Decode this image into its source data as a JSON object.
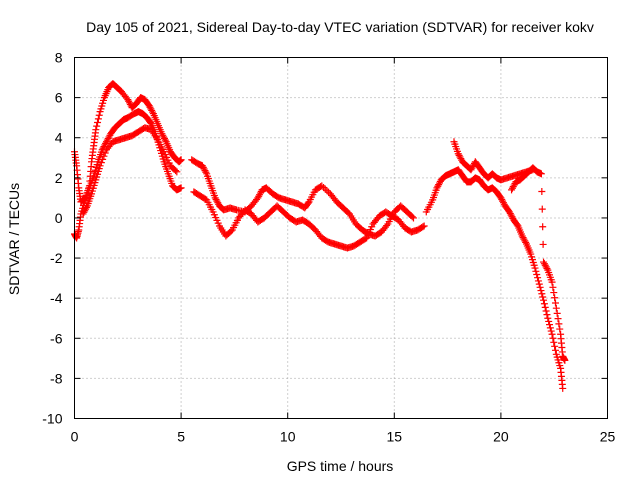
{
  "chart_data": {
    "type": "scatter",
    "title": "Day 105 of 2021, Sidereal Day-to-day VTEC variation (SDTVAR) for receiver kokv",
    "xlabel": "GPS time / hours",
    "ylabel": "SDTVAR / TECUs",
    "xlim": [
      0,
      25
    ],
    "ylim": [
      -10,
      8
    ],
    "x_ticks": [
      0,
      5,
      10,
      15,
      20,
      25
    ],
    "y_ticks": [
      -10,
      -8,
      -6,
      -4,
      -2,
      0,
      2,
      4,
      6,
      8
    ],
    "x_tick_labels": [
      "0",
      "5",
      "10",
      "15",
      "20",
      "25"
    ],
    "y_tick_labels": [
      "-10",
      "-8",
      "-6",
      "-4",
      "-2",
      "0",
      "2",
      "4",
      "6",
      "8"
    ],
    "grid": true,
    "marker": "+",
    "color": "#ff0000",
    "series": [
      {
        "name": "track-1",
        "points": [
          [
            0.0,
            3.3
          ],
          [
            0.1,
            2.6
          ],
          [
            0.2,
            1.5
          ],
          [
            0.3,
            0.8
          ],
          [
            0.5,
            1.0
          ],
          [
            0.7,
            1.6
          ],
          [
            0.8,
            2.8
          ],
          [
            0.9,
            3.6
          ],
          [
            1.0,
            4.4
          ],
          [
            1.2,
            5.3
          ],
          [
            1.4,
            6.0
          ],
          [
            1.6,
            6.5
          ],
          [
            1.8,
            6.7
          ],
          [
            2.0,
            6.5
          ],
          [
            2.2,
            6.3
          ],
          [
            2.5,
            5.9
          ],
          [
            2.7,
            5.5
          ],
          [
            2.9,
            5.7
          ],
          [
            3.1,
            6.0
          ],
          [
            3.3,
            5.9
          ],
          [
            3.5,
            5.6
          ],
          [
            3.7,
            5.2
          ],
          [
            3.9,
            4.7
          ],
          [
            4.1,
            4.2
          ],
          [
            4.3,
            3.8
          ],
          [
            4.5,
            3.3
          ],
          [
            4.7,
            3.0
          ],
          [
            4.9,
            2.8
          ],
          [
            5.0,
            2.9
          ]
        ]
      },
      {
        "name": "track-2",
        "points": [
          [
            0.0,
            -0.8
          ],
          [
            0.1,
            -1.0
          ],
          [
            0.2,
            -0.6
          ],
          [
            0.3,
            0.2
          ],
          [
            0.5,
            0.9
          ],
          [
            0.7,
            1.5
          ],
          [
            0.9,
            2.1
          ],
          [
            1.1,
            2.8
          ],
          [
            1.3,
            3.4
          ],
          [
            1.5,
            3.8
          ],
          [
            1.7,
            4.2
          ],
          [
            1.9,
            4.5
          ],
          [
            2.1,
            4.7
          ],
          [
            2.3,
            4.9
          ],
          [
            2.5,
            5.0
          ],
          [
            2.8,
            5.2
          ],
          [
            3.0,
            5.3
          ],
          [
            3.2,
            5.2
          ],
          [
            3.4,
            5.0
          ],
          [
            3.6,
            4.7
          ],
          [
            3.8,
            4.2
          ],
          [
            4.0,
            3.5
          ],
          [
            4.2,
            2.8
          ],
          [
            4.4,
            2.2
          ],
          [
            4.6,
            1.6
          ],
          [
            4.8,
            1.4
          ],
          [
            5.0,
            1.5
          ]
        ]
      },
      {
        "name": "track-3",
        "points": [
          [
            0.4,
            0.2
          ],
          [
            0.6,
            0.6
          ],
          [
            0.8,
            1.2
          ],
          [
            1.0,
            1.9
          ],
          [
            1.2,
            2.6
          ],
          [
            1.5,
            3.4
          ],
          [
            1.8,
            3.8
          ],
          [
            2.1,
            3.9
          ],
          [
            2.4,
            4.0
          ],
          [
            2.7,
            4.1
          ],
          [
            3.0,
            4.3
          ],
          [
            3.3,
            4.5
          ],
          [
            3.6,
            4.4
          ],
          [
            3.9,
            3.9
          ],
          [
            4.2,
            3.3
          ],
          [
            4.5,
            2.6
          ],
          [
            4.8,
            2.3
          ]
        ]
      },
      {
        "name": "track-4",
        "points": [
          [
            5.5,
            2.9
          ],
          [
            5.8,
            2.7
          ],
          [
            6.0,
            2.6
          ],
          [
            6.2,
            2.2
          ],
          [
            6.4,
            1.6
          ],
          [
            6.6,
            1.0
          ],
          [
            6.8,
            0.6
          ],
          [
            7.0,
            0.4
          ],
          [
            7.3,
            0.5
          ],
          [
            7.6,
            0.4
          ],
          [
            8.0,
            0.3
          ],
          [
            8.3,
            0.6
          ],
          [
            8.6,
            1.0
          ],
          [
            8.8,
            1.4
          ],
          [
            9.0,
            1.5
          ],
          [
            9.3,
            1.2
          ],
          [
            9.6,
            1.0
          ],
          [
            9.9,
            0.9
          ],
          [
            10.2,
            0.8
          ],
          [
            10.5,
            0.7
          ],
          [
            10.8,
            0.5
          ],
          [
            11.0,
            0.8
          ],
          [
            11.3,
            1.4
          ],
          [
            11.6,
            1.6
          ],
          [
            12.0,
            1.2
          ],
          [
            12.3,
            0.8
          ],
          [
            12.6,
            0.5
          ],
          [
            12.9,
            0.2
          ],
          [
            13.2,
            -0.3
          ],
          [
            13.5,
            -0.6
          ],
          [
            13.8,
            -0.8
          ],
          [
            14.1,
            -0.9
          ],
          [
            14.4,
            -0.7
          ],
          [
            14.7,
            -0.3
          ],
          [
            15.0,
            0.3
          ],
          [
            15.3,
            0.6
          ],
          [
            15.6,
            0.3
          ],
          [
            15.9,
            0.0
          ]
        ]
      },
      {
        "name": "track-5",
        "points": [
          [
            5.6,
            1.3
          ],
          [
            5.9,
            1.1
          ],
          [
            6.2,
            0.9
          ],
          [
            6.5,
            0.3
          ],
          [
            6.8,
            -0.4
          ],
          [
            7.1,
            -0.9
          ],
          [
            7.4,
            -0.6
          ],
          [
            7.7,
            0.0
          ],
          [
            8.0,
            0.4
          ],
          [
            8.3,
            0.2
          ],
          [
            8.6,
            -0.2
          ],
          [
            8.9,
            0.0
          ],
          [
            9.2,
            0.3
          ],
          [
            9.5,
            0.6
          ],
          [
            9.8,
            0.3
          ],
          [
            10.1,
            0.0
          ],
          [
            10.4,
            -0.2
          ],
          [
            10.7,
            -0.1
          ],
          [
            11.0,
            -0.3
          ],
          [
            11.3,
            -0.6
          ],
          [
            11.6,
            -1.0
          ],
          [
            11.9,
            -1.2
          ],
          [
            12.2,
            -1.3
          ],
          [
            12.5,
            -1.4
          ],
          [
            12.8,
            -1.5
          ],
          [
            13.1,
            -1.4
          ],
          [
            13.4,
            -1.2
          ],
          [
            13.7,
            -1.0
          ],
          [
            14.0,
            -0.3
          ],
          [
            14.3,
            0.1
          ],
          [
            14.6,
            0.3
          ],
          [
            14.9,
            0.1
          ],
          [
            15.2,
            -0.1
          ],
          [
            15.5,
            -0.5
          ],
          [
            15.8,
            -0.7
          ],
          [
            16.1,
            -0.6
          ],
          [
            16.4,
            -0.4
          ]
        ]
      },
      {
        "name": "track-6",
        "points": [
          [
            16.5,
            0.3
          ],
          [
            16.8,
            0.9
          ],
          [
            17.0,
            1.5
          ],
          [
            17.2,
            1.9
          ],
          [
            17.4,
            2.1
          ],
          [
            17.6,
            2.2
          ],
          [
            17.8,
            2.3
          ],
          [
            18.0,
            2.4
          ],
          [
            18.2,
            2.1
          ],
          [
            18.4,
            1.8
          ],
          [
            18.6,
            1.8
          ],
          [
            18.8,
            2.0
          ],
          [
            19.0,
            1.9
          ],
          [
            19.2,
            1.6
          ],
          [
            19.4,
            1.4
          ],
          [
            19.6,
            1.5
          ],
          [
            19.8,
            1.3
          ],
          [
            20.0,
            1.0
          ],
          [
            20.2,
            0.6
          ],
          [
            20.4,
            0.3
          ],
          [
            20.6,
            -0.1
          ],
          [
            20.8,
            -0.4
          ],
          [
            21.0,
            -0.9
          ],
          [
            21.2,
            -1.3
          ],
          [
            21.4,
            -1.8
          ],
          [
            21.6,
            -2.5
          ],
          [
            21.8,
            -3.3
          ],
          [
            22.0,
            -4.1
          ],
          [
            22.2,
            -5.0
          ],
          [
            22.4,
            -5.8
          ],
          [
            22.6,
            -6.8
          ],
          [
            22.8,
            -7.5
          ],
          [
            22.9,
            -8.5
          ]
        ]
      },
      {
        "name": "track-7",
        "points": [
          [
            17.8,
            3.8
          ],
          [
            18.0,
            3.2
          ],
          [
            18.2,
            2.8
          ],
          [
            18.4,
            2.6
          ],
          [
            18.6,
            2.4
          ],
          [
            18.8,
            2.8
          ],
          [
            19.0,
            2.5
          ],
          [
            19.2,
            2.2
          ],
          [
            19.4,
            2.0
          ],
          [
            19.6,
            2.2
          ],
          [
            19.8,
            2.0
          ],
          [
            20.0,
            1.9
          ],
          [
            20.3,
            2.0
          ],
          [
            20.6,
            2.1
          ],
          [
            20.9,
            2.2
          ],
          [
            21.2,
            2.3
          ],
          [
            21.5,
            2.4
          ]
        ]
      },
      {
        "name": "track-8",
        "points": [
          [
            20.5,
            1.4
          ],
          [
            20.7,
            1.8
          ],
          [
            20.9,
            1.9
          ],
          [
            21.1,
            2.1
          ],
          [
            21.3,
            2.3
          ],
          [
            21.5,
            2.5
          ],
          [
            21.7,
            2.3
          ],
          [
            21.9,
            2.2
          ],
          [
            22.0,
            -2.2
          ],
          [
            22.2,
            -2.6
          ],
          [
            22.4,
            -3.2
          ],
          [
            22.6,
            -4.5
          ],
          [
            22.8,
            -5.8
          ],
          [
            22.9,
            -6.9
          ],
          [
            23.0,
            -7.1
          ]
        ]
      }
    ]
  }
}
